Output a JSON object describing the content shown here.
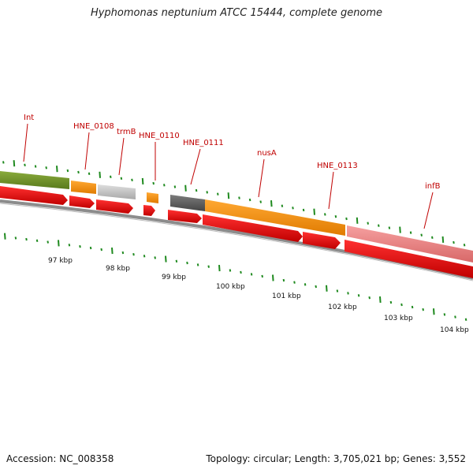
{
  "title": "Hyphomonas neptunium ATCC 15444, complete genome",
  "footer": {
    "accession": "Accession: NC_008358",
    "summary": "Topology: circular; Length: 3,705,021 bp; Genes: 3,552"
  },
  "colors": {
    "backbone": "#7a7a7a",
    "cds": "#e60000",
    "tick": "#1f8a1f",
    "label": "#c00000"
  },
  "gene_labels": [
    "Int",
    "HNE_0108",
    "trmB",
    "HNE_0110",
    "HNE_0111",
    "nusA",
    "HNE_0113",
    "infB"
  ],
  "kbp_labels": [
    "97 kbp",
    "98 kbp",
    "99 kbp",
    "100 kbp",
    "101 kbp",
    "102 kbp",
    "103 kbp",
    "104 kbp"
  ]
}
